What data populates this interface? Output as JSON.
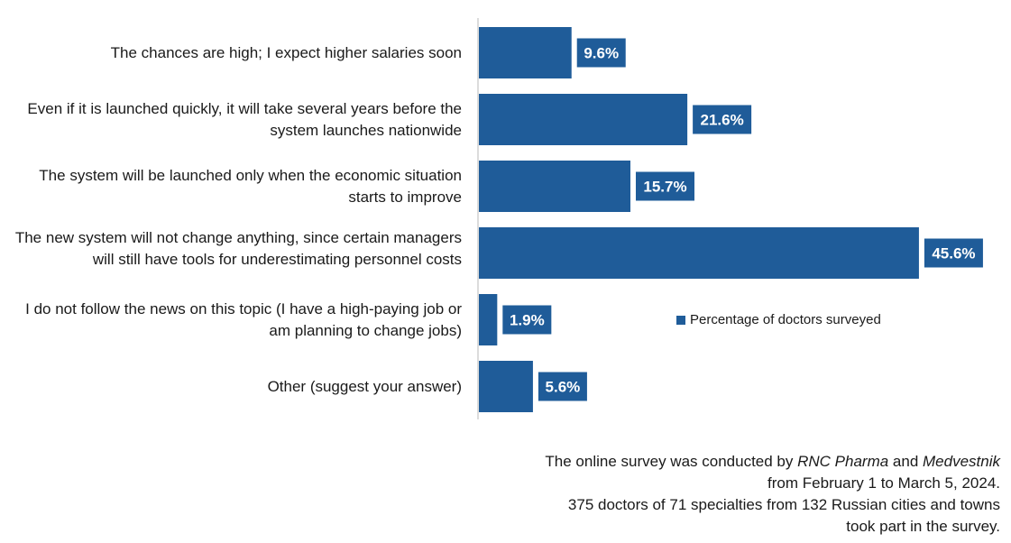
{
  "chart_data": {
    "type": "bar",
    "orientation": "horizontal",
    "categories": [
      "The chances are high; I expect higher salaries soon",
      "Even if it is launched quickly, it will take several years before the system launches nationwide",
      "The system will be launched only when the economic situation starts to improve",
      "The new system will not change anything, since certain managers will still have tools for underestimating personnel costs",
      "I do not follow the news on this topic (I have a high-paying job or am planning to change jobs)",
      "Other (suggest your answer)"
    ],
    "series": [
      {
        "name": "Percentage of doctors surveyed",
        "values": [
          9.6,
          21.6,
          15.7,
          45.6,
          1.9,
          5.6
        ],
        "labels": [
          "9.6%",
          "21.6%",
          "15.7%",
          "45.6%",
          "1.9%",
          "5.6%"
        ]
      }
    ],
    "xlim": [
      0,
      50
    ],
    "grid": false,
    "legend_position": "right",
    "colors": {
      "bar": "#1f5c99",
      "axis": "#d0d0d0",
      "label_text": "#ffffff"
    }
  },
  "note": {
    "line1_prefix": "The online survey was conducted by ",
    "line1_company1": "RNC Pharma",
    "line1_and": " and ",
    "line1_company2": "Medvestnik",
    "line2": "from February 1 to March 5, 2024.",
    "line3": "375 doctors of 71 specialties from 132 Russian cities and towns",
    "line4": "took part in the survey."
  }
}
